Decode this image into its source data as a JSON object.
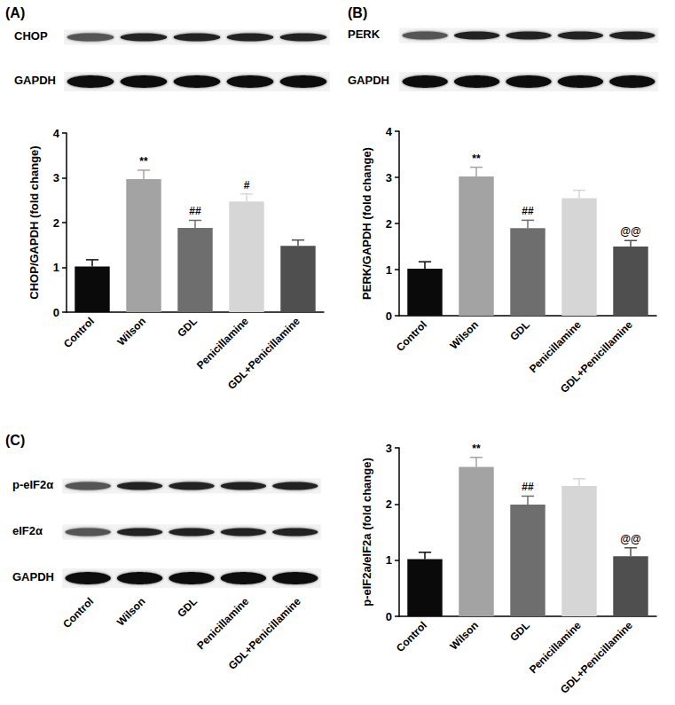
{
  "chart_data": [
    {
      "type": "bar",
      "panel": "(A)",
      "blot_labels": [
        "CHOP",
        "GAPDH"
      ],
      "ylabel": "CHOP/GAPDH (fold change)",
      "categories": [
        "Control",
        "Wilson",
        "GDL",
        "Penicillamine",
        "GDL+Penicillamine"
      ],
      "values": [
        1.02,
        2.97,
        1.88,
        2.47,
        1.48
      ],
      "errors": [
        0.15,
        0.2,
        0.17,
        0.17,
        0.13
      ],
      "annotations": [
        null,
        "**",
        "##",
        "#",
        null
      ],
      "colors": [
        "#0a0a0a",
        "#a3a3a3",
        "#6e6e6e",
        "#d6d6d6",
        "#4f4f4f"
      ],
      "ylim": [
        0,
        4
      ],
      "yticks": [
        0,
        1,
        2,
        3,
        4
      ]
    },
    {
      "type": "bar",
      "panel": "(B)",
      "blot_labels": [
        "PERK",
        "GAPDH"
      ],
      "ylabel": "PERK/GAPDH (fold change)",
      "categories": [
        "Control",
        "Wilson",
        "GDL",
        "Penicillamine",
        "GDL+Penicillamine"
      ],
      "values": [
        1.02,
        3.02,
        1.9,
        2.55,
        1.5
      ],
      "errors": [
        0.15,
        0.2,
        0.17,
        0.17,
        0.13
      ],
      "annotations": [
        null,
        "**",
        "##",
        null,
        "@@"
      ],
      "colors": [
        "#0a0a0a",
        "#a3a3a3",
        "#6e6e6e",
        "#d6d6d6",
        "#4f4f4f"
      ],
      "ylim": [
        0,
        4
      ],
      "yticks": [
        0,
        1,
        2,
        3,
        4
      ]
    },
    {
      "type": "bar",
      "panel": "(C)",
      "blot_labels": [
        "p-eIF2α",
        "eIF2α",
        "GAPDH"
      ],
      "blot_lane_labels": [
        "Control",
        "Wilson",
        "GDL",
        "Penicillamine",
        "GDL+Penicillamine"
      ],
      "ylabel": "p-eIF2a/eIF2a (fold change)",
      "categories": [
        "Control",
        "Wilson",
        "GDL",
        "Penicillamine",
        "GDL+Penicillamine"
      ],
      "values": [
        1.02,
        2.66,
        1.99,
        2.32,
        1.07
      ],
      "errors": [
        0.12,
        0.17,
        0.15,
        0.13,
        0.15
      ],
      "annotations": [
        null,
        "**",
        "##",
        null,
        "@@"
      ],
      "colors": [
        "#0a0a0a",
        "#a3a3a3",
        "#6e6e6e",
        "#d6d6d6",
        "#4f4f4f"
      ],
      "ylim": [
        0,
        3
      ],
      "yticks": [
        0,
        1,
        2,
        3
      ]
    }
  ]
}
